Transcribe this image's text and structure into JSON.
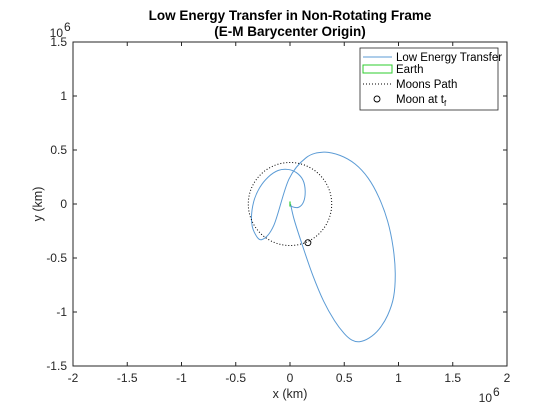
{
  "chart_data": {
    "type": "line",
    "title": [
      "Low Energy Transfer in Non-Rotating Frame",
      "(E-M Barycenter Origin)"
    ],
    "xlabel": "x (km)",
    "ylabel": "y (km)",
    "xlim": [
      -2000000,
      2000000
    ],
    "ylim": [
      -1500000,
      1500000
    ],
    "x_ticks": [
      -2000000,
      -1500000,
      -1000000,
      -500000,
      0,
      500000,
      1000000,
      1500000,
      2000000
    ],
    "x_tick_labels": [
      "-2",
      "-1.5",
      "-1",
      "-0.5",
      "0",
      "0.5",
      "1",
      "1.5",
      "2"
    ],
    "y_ticks": [
      -1500000,
      -1000000,
      -500000,
      0,
      500000,
      1000000,
      1500000
    ],
    "y_tick_labels": [
      "-1.5",
      "-1",
      "-0.5",
      "0",
      "0.5",
      "1",
      "1.5"
    ],
    "x_exponent": "10",
    "x_exponent_power": "6",
    "y_exponent": "10",
    "y_exponent_power": "6",
    "grid": false,
    "legend_position": "top-right",
    "series": [
      {
        "name": "Low Energy Transfer",
        "color": "#5b9bd5",
        "style": "solid",
        "x": [
          0,
          20000,
          80000,
          125000,
          140000,
          120000,
          60000,
          -20000,
          -110000,
          -200000,
          -280000,
          -335000,
          -355000,
          -330000,
          -260000,
          -150000,
          -10000,
          150000,
          310000,
          460000,
          600000,
          720000,
          820000,
          900000,
          950000,
          970000,
          955000,
          900000,
          820000,
          730000,
          640000,
          570000,
          500000,
          410000,
          310000,
          210000,
          120000,
          40000,
          5000
        ],
        "y": [
          0,
          -25000,
          -30000,
          20000,
          120000,
          220000,
          290000,
          320000,
          310000,
          250000,
          150000,
          20000,
          -140000,
          -260000,
          -330000,
          -200000,
          230000,
          430000,
          480000,
          450000,
          370000,
          240000,
          60000,
          -160000,
          -400000,
          -640000,
          -860000,
          -1030000,
          -1160000,
          -1240000,
          -1275000,
          -1260000,
          -1200000,
          -1080000,
          -900000,
          -660000,
          -400000,
          -150000,
          0
        ]
      },
      {
        "name": "Earth",
        "color": "#2ecc2e",
        "style": "solid",
        "x": [
          0,
          0
        ],
        "y": [
          -5000,
          5000
        ]
      },
      {
        "name": "Moons Path",
        "color": "#000000",
        "style": "dotted",
        "center": [
          0,
          0
        ],
        "radius": 384400
      },
      {
        "name": "Moon at t",
        "name_subscript": "f",
        "color": "#000000",
        "style": "marker-circle",
        "x": [
          165000
        ],
        "y": [
          -358000
        ]
      }
    ]
  }
}
